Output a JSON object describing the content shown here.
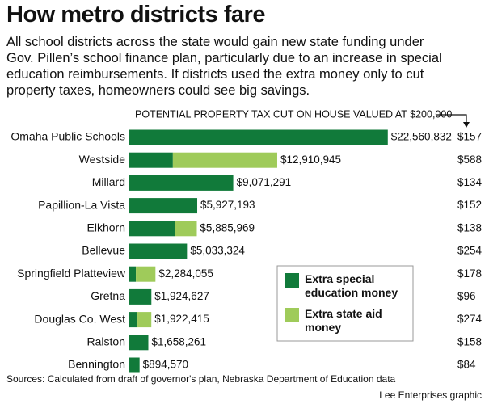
{
  "chart_data": {
    "type": "stacked-bar",
    "title": "How metro districts fare",
    "subtitle": [
      "All school districts across the state would gain new state funding under",
      "Gov. Pillen’s school finance plan, particularly due to an increase in special",
      "education reimbursements. If districts used the extra money only to cut",
      "property taxes, homeowners could see big savings."
    ],
    "categories": [
      "Omaha Public Schools",
      "Westside",
      "Millard",
      "Papillion-La Vista",
      "Elkhorn",
      "Bellevue",
      "Springfield Platteview",
      "Gretna",
      "Douglas Co. West",
      "Ralston",
      "Bennington"
    ],
    "series": [
      {
        "name": "Extra special education money",
        "color": "#117a3a",
        "values": [
          22560832,
          3800000,
          9071291,
          5927193,
          3970000,
          5033324,
          570000,
          1924627,
          710000,
          1658261,
          894570
        ]
      },
      {
        "name": "Extra state aid money",
        "color": "#9fcb5a",
        "values": [
          0,
          9110000,
          0,
          0,
          1920000,
          0,
          1710000,
          0,
          1210000,
          0,
          0
        ]
      }
    ],
    "totals": [
      22560832,
      12910945,
      9071291,
      5927193,
      5885969,
      5033324,
      2284055,
      1924627,
      1922415,
      1658261,
      894570
    ],
    "total_labels": [
      "$22,560,832",
      "$12,910,945",
      "$9,071,291",
      "$5,927,193",
      "$5,885,969",
      "$5,033,324",
      "$2,284,055",
      "$1,924,627",
      "$1,922,415",
      "$1,658,261",
      "$894,570"
    ],
    "tax_cut": {
      "title": "POTENTIAL PROPERTY TAX CUT ON HOUSE VALUED AT $200,000",
      "values": [
        157,
        588,
        134,
        152,
        138,
        254,
        178,
        96,
        274,
        158,
        84
      ],
      "value_labels": [
        "$157",
        "$588",
        "$134",
        "$152",
        "$138",
        "$254",
        "$178",
        "$96",
        "$274",
        "$158",
        "$84"
      ]
    },
    "xlim": [
      0,
      23000000
    ],
    "source": "Sources: Calculated from draft of governor's plan, Nebraska Department of Education data",
    "credit": "Lee Enterprises graphic"
  }
}
